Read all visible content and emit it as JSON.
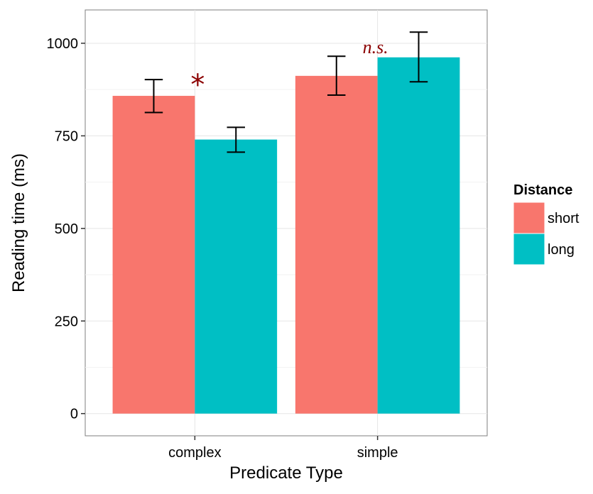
{
  "chart_data": {
    "type": "bar",
    "xlabel": "Predicate Type",
    "ylabel": "Reading time (ms)",
    "categories": [
      "complex",
      "simple"
    ],
    "ylim": [
      -60,
      1090
    ],
    "yticks": [
      0,
      250,
      500,
      750,
      1000
    ],
    "grid": true,
    "legend": {
      "title": "Distance",
      "position": "right"
    },
    "series": [
      {
        "name": "short",
        "color": "#F8766D",
        "values": [
          858,
          912
        ],
        "error_low": [
          813,
          860
        ],
        "error_high": [
          902,
          965
        ]
      },
      {
        "name": "long",
        "color": "#00BFC4",
        "values": [
          740,
          962
        ],
        "error_low": [
          706,
          896
        ],
        "error_high": [
          773,
          1030
        ]
      }
    ],
    "annotations": [
      {
        "category": "complex",
        "text": "*",
        "color": "#8B0000"
      },
      {
        "category": "simple",
        "text": "n.s.",
        "color": "#8B0000"
      }
    ]
  }
}
